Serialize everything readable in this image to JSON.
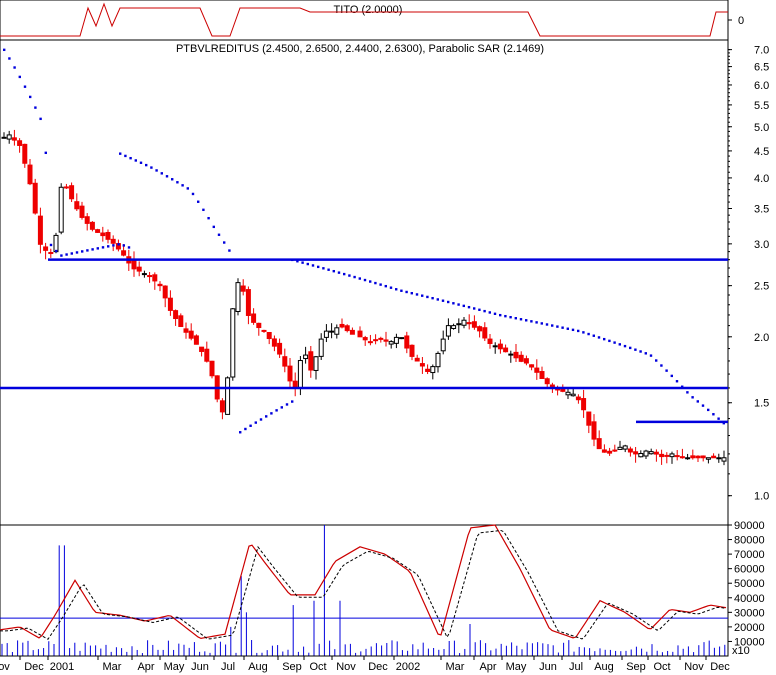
{
  "chart_data": {
    "type": "candlestick",
    "panels": {
      "indicator": {
        "label": "TITO (2.0000)",
        "ticks": [
          "0"
        ]
      },
      "price": {
        "label": "PTBVLREDITUS (2.4500, 2.6500, 2.4400, 2.6300), Parabolic SAR (2.1469)",
        "scale": "log",
        "ylim": [
          0.88,
          7.3
        ],
        "ticks": [
          "7.0",
          "6.5",
          "6.0",
          "5.5",
          "5.0",
          "4.5",
          "4.0",
          "3.5",
          "3.0",
          "2.5",
          "2.0",
          "1.5",
          "1.0"
        ],
        "hlines": [
          {
            "y": 2.8,
            "from": "Dec 2000",
            "to": "end"
          },
          {
            "y": 1.6,
            "from": "start",
            "to": "end"
          },
          {
            "y": 1.38,
            "from": "Sep 2002",
            "to": "end"
          }
        ]
      },
      "volume": {
        "ylim": [
          0,
          90000
        ],
        "ticks": [
          "90000",
          "80000",
          "70000",
          "60000",
          "50000",
          "40000",
          "30000",
          "20000",
          "10000"
        ],
        "unit": "x10",
        "hline": 26000
      }
    },
    "xlabels": [
      "ov",
      "Dec",
      "2001",
      "Mar",
      "Apr",
      "May",
      "Jun",
      "Jul",
      "Aug",
      "Sep",
      "Oct",
      "Nov",
      "Dec",
      "2002",
      "Mar",
      "Apr",
      "May",
      "Jun",
      "Jul",
      "Aug",
      "Sep",
      "Oct",
      "Nov",
      "Dec"
    ],
    "colors": {
      "up": "#000000",
      "down": "#ee0000",
      "sar": "#0000dd",
      "line": "#0000dd",
      "osc": "#cc0000",
      "frame": "#000000"
    }
  }
}
